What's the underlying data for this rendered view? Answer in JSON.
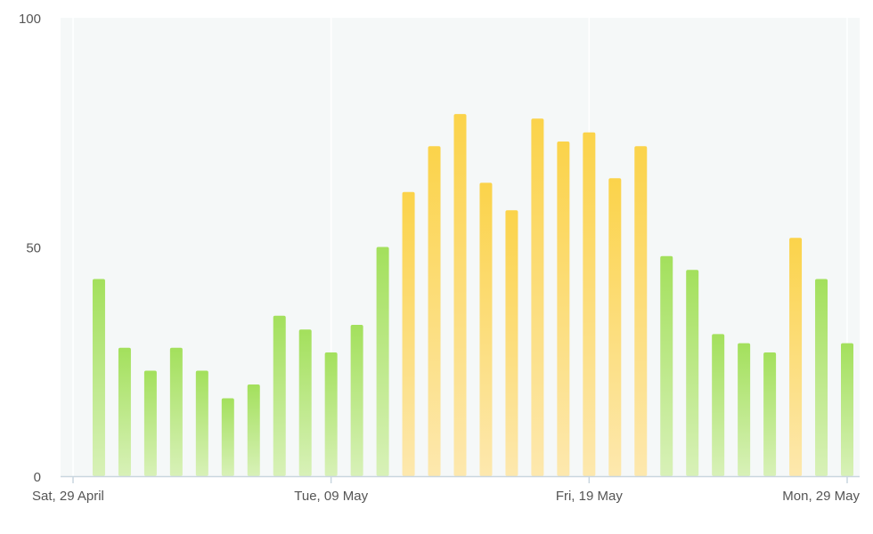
{
  "chart_data": {
    "type": "bar",
    "title": "",
    "xlabel": "",
    "ylabel": "",
    "ylim": [
      0,
      100
    ],
    "y_ticks": [
      "0",
      "50",
      "100"
    ],
    "x_tick_labels": [
      {
        "label": "Sat, 29 April",
        "date": "2023-04-29"
      },
      {
        "label": "Tue, 09 May",
        "date": "2023-05-09"
      },
      {
        "label": "Fri, 19 May",
        "date": "2023-05-19"
      },
      {
        "label": "Mon, 29 May",
        "date": "2023-05-29"
      }
    ],
    "grid": "vertical",
    "colors": {
      "green": "#a3e05c",
      "green_light": "#d8f1b8",
      "yellow": "#fbd34a",
      "yellow_light": "#fde8ae",
      "plot_background": "#f5f8f8",
      "axis": "#c9d6df"
    },
    "bars": [
      {
        "date": "2023-04-30",
        "value": 43,
        "color": "green"
      },
      {
        "date": "2023-05-01",
        "value": 28,
        "color": "green"
      },
      {
        "date": "2023-05-02",
        "value": 23,
        "color": "green"
      },
      {
        "date": "2023-05-03",
        "value": 28,
        "color": "green"
      },
      {
        "date": "2023-05-04",
        "value": 23,
        "color": "green"
      },
      {
        "date": "2023-05-05",
        "value": 17,
        "color": "green"
      },
      {
        "date": "2023-05-06",
        "value": 20,
        "color": "green"
      },
      {
        "date": "2023-05-07",
        "value": 35,
        "color": "green"
      },
      {
        "date": "2023-05-08",
        "value": 32,
        "color": "green"
      },
      {
        "date": "2023-05-09",
        "value": 27,
        "color": "green"
      },
      {
        "date": "2023-05-10",
        "value": 33,
        "color": "green"
      },
      {
        "date": "2023-05-11",
        "value": 50,
        "color": "green"
      },
      {
        "date": "2023-05-12",
        "value": 62,
        "color": "yellow"
      },
      {
        "date": "2023-05-13",
        "value": 72,
        "color": "yellow"
      },
      {
        "date": "2023-05-14",
        "value": 79,
        "color": "yellow"
      },
      {
        "date": "2023-05-15",
        "value": 64,
        "color": "yellow"
      },
      {
        "date": "2023-05-16",
        "value": 58,
        "color": "yellow"
      },
      {
        "date": "2023-05-17",
        "value": 78,
        "color": "yellow"
      },
      {
        "date": "2023-05-18",
        "value": 73,
        "color": "yellow"
      },
      {
        "date": "2023-05-19",
        "value": 75,
        "color": "yellow"
      },
      {
        "date": "2023-05-20",
        "value": 65,
        "color": "yellow"
      },
      {
        "date": "2023-05-21",
        "value": 72,
        "color": "yellow"
      },
      {
        "date": "2023-05-22",
        "value": 48,
        "color": "green"
      },
      {
        "date": "2023-05-23",
        "value": 45,
        "color": "green"
      },
      {
        "date": "2023-05-24",
        "value": 31,
        "color": "green"
      },
      {
        "date": "2023-05-25",
        "value": 29,
        "color": "green"
      },
      {
        "date": "2023-05-26",
        "value": 27,
        "color": "green"
      },
      {
        "date": "2023-05-27",
        "value": 52,
        "color": "yellow"
      },
      {
        "date": "2023-05-28",
        "value": 43,
        "color": "green"
      },
      {
        "date": "2023-05-29",
        "value": 29,
        "color": "green"
      }
    ]
  }
}
